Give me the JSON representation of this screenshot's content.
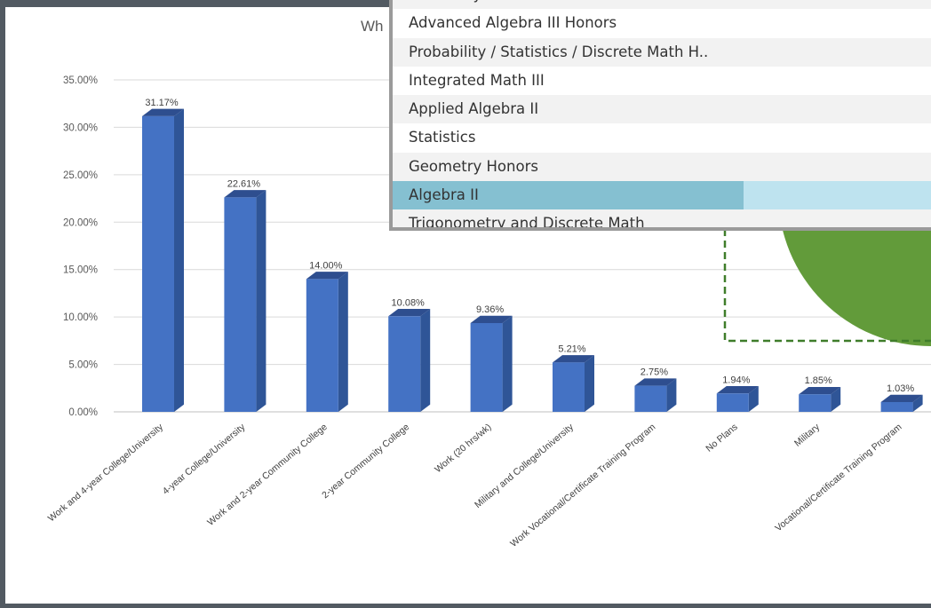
{
  "chart_title_fragment": "Wh",
  "chart_data": {
    "type": "bar",
    "categories": [
      "Work and 4-year College/University",
      "4-year College/University",
      "Work and 2-year Community College",
      "2-year Community College",
      "Work (20 hrs/wk)",
      "Military and College/University",
      "Work Vocational/Certificate Training Program",
      "No Plans",
      "Military",
      "Vocational/Certificate Training Program"
    ],
    "values": [
      31.17,
      22.61,
      14.0,
      10.08,
      9.36,
      5.21,
      2.75,
      1.94,
      1.85,
      1.03
    ],
    "data_labels": [
      "31.17%",
      "22.61%",
      "14.00%",
      "10.08%",
      "9.36%",
      "5.21%",
      "2.75%",
      "1.94%",
      "1.85%",
      "1.03%"
    ],
    "y_ticks": [
      "0.00%",
      "5.00%",
      "10.00%",
      "15.00%",
      "20.00%",
      "25.00%",
      "30.00%",
      "35.00%"
    ],
    "ylim": [
      0,
      35
    ],
    "grid": true,
    "bar_color": "#4472c4",
    "bar_side_color": "#2f5597",
    "bar_top_color": "#2e4e8f"
  },
  "dropdown": {
    "items": [
      "Geometry",
      "Advanced Algebra III Honors",
      "Probability / Statistics / Discrete Math H..",
      "Integrated Math III",
      "Applied Algebra II",
      "Statistics",
      "Geometry Honors",
      "Algebra II",
      "Trigonometry and Discrete Math"
    ],
    "selected": "Algebra II",
    "selected_color": "#85c0d1"
  },
  "pie_fragment": {
    "fill_color": "#629b3a",
    "border_color": "#3f7d2a"
  }
}
